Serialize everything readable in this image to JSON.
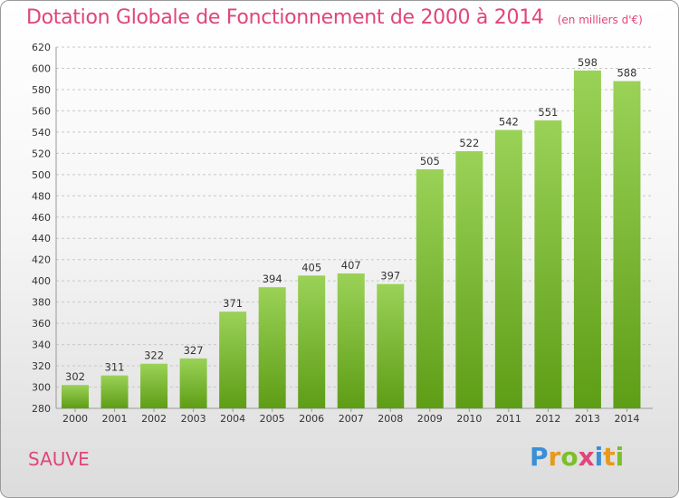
{
  "header": {
    "title": "Dotation Globale de Fonctionnement de 2000 à 2014",
    "unit": "(en milliers d'€)"
  },
  "footer": {
    "commune": "SAUVE",
    "logo_letters": [
      "P",
      "r",
      "o",
      "x",
      "i",
      "t",
      "i"
    ],
    "logo_colors": [
      "#3a8fd6",
      "#e69a1e",
      "#7cbf2a",
      "#e0457b",
      "#3a8fd6",
      "#e69a1e",
      "#7cbf2a"
    ]
  },
  "colors": {
    "bar_top": "#9ad257",
    "bar_bottom": "#5e9d16",
    "grid": "#c8c8c8",
    "axis_text": "#333333",
    "title": "#e0457b"
  },
  "chart_data": {
    "type": "bar",
    "categories": [
      "2000",
      "2001",
      "2002",
      "2003",
      "2004",
      "2005",
      "2006",
      "2007",
      "2008",
      "2009",
      "2010",
      "2011",
      "2012",
      "2013",
      "2014"
    ],
    "values": [
      302,
      311,
      322,
      327,
      371,
      394,
      405,
      407,
      397,
      505,
      522,
      542,
      551,
      598,
      588
    ],
    "y_ticks": [
      280,
      300,
      320,
      340,
      360,
      380,
      400,
      420,
      440,
      460,
      480,
      500,
      520,
      540,
      560,
      580,
      600,
      620
    ],
    "ylim": [
      280,
      620
    ],
    "grid": true,
    "legend": "none"
  }
}
